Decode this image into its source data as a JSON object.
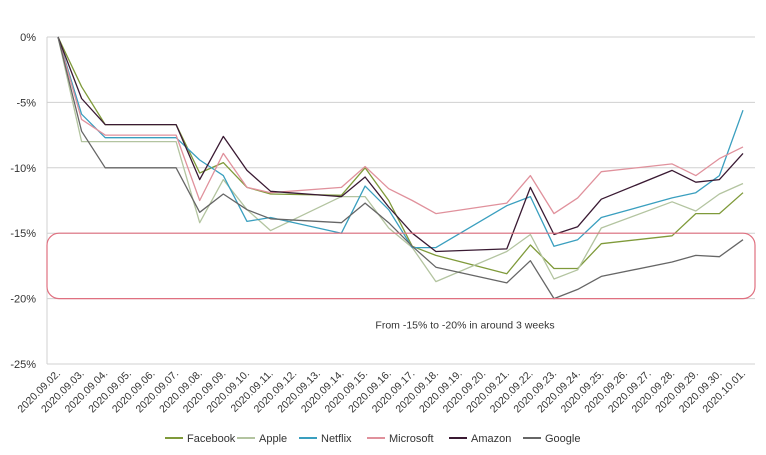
{
  "chart_data": {
    "type": "line",
    "title": "",
    "xlabel": "",
    "ylabel": "",
    "ylim": [
      -25,
      0
    ],
    "y_ticks": [
      "0%",
      "-5%",
      "-10%",
      "-15%",
      "-20%",
      "-25%"
    ],
    "y_tick_values": [
      0,
      -5,
      -10,
      -15,
      -20,
      -25
    ],
    "grid": true,
    "legend": "bottom",
    "categories": [
      "2020.09.02.",
      "2020.09.03.",
      "2020.09.04.",
      "2020.09.05.",
      "2020.09.06.",
      "2020.09.07.",
      "2020.09.08.",
      "2020.09.09.",
      "2020.09.10.",
      "2020.09.11.",
      "2020.09.12.",
      "2020.09.13.",
      "2020.09.14.",
      "2020.09.15.",
      "2020.09.16.",
      "2020.09.17.",
      "2020.09.18.",
      "2020.09.19.",
      "2020.09.20.",
      "2020.09.21.",
      "2020.09.22.",
      "2020.09.23.",
      "2020.09.24.",
      "2020.09.25.",
      "2020.09.26.",
      "2020.09.27.",
      "2020.09.28.",
      "2020.09.29.",
      "2020.09.30.",
      "2020.10.01."
    ],
    "series": [
      {
        "name": "Facebook",
        "color": "#7f9a3a",
        "values": [
          0,
          -3.8,
          -6.7,
          null,
          null,
          -6.7,
          -10.4,
          -9.6,
          -11.5,
          -12.0,
          null,
          null,
          -12.1,
          -10.0,
          -12.5,
          -16.0,
          -16.7,
          null,
          null,
          -18.1,
          -15.9,
          -17.7,
          -17.7,
          -15.8,
          null,
          null,
          -15.2,
          -13.5,
          -13.5,
          -11.9
        ]
      },
      {
        "name": "Apple",
        "color": "#b3c4a0",
        "values": [
          0,
          -8.0,
          -8.0,
          null,
          null,
          -8.0,
          -14.2,
          -10.9,
          -13.2,
          -14.8,
          null,
          null,
          -12.2,
          -12.2,
          -14.6,
          -16.1,
          -18.7,
          null,
          null,
          -16.4,
          -15.1,
          -18.5,
          -17.8,
          -14.6,
          null,
          null,
          -12.6,
          -13.3,
          -12.0,
          -11.2
        ]
      },
      {
        "name": "Netflix",
        "color": "#3a9fbf",
        "values": [
          0,
          -5.9,
          -7.7,
          null,
          null,
          -7.7,
          -9.4,
          -10.6,
          -14.1,
          -13.8,
          null,
          null,
          -15.0,
          -11.4,
          -13.2,
          -16.1,
          -16.1,
          null,
          null,
          -12.9,
          -12.2,
          -16.0,
          -15.5,
          -13.8,
          null,
          null,
          -12.3,
          -11.9,
          -10.6,
          -5.6
        ]
      },
      {
        "name": "Microsoft",
        "color": "#e0919c",
        "values": [
          0,
          -6.3,
          -7.5,
          null,
          null,
          -7.5,
          -12.5,
          -8.9,
          -11.5,
          -11.9,
          null,
          null,
          -11.5,
          -9.9,
          -11.6,
          -12.5,
          -13.5,
          null,
          null,
          -12.7,
          -10.6,
          -13.5,
          -12.3,
          -10.3,
          null,
          null,
          -9.7,
          -10.6,
          -9.3,
          -8.4
        ]
      },
      {
        "name": "Amazon",
        "color": "#3a1a33",
        "values": [
          0,
          -4.7,
          -6.7,
          null,
          null,
          -6.7,
          -10.9,
          -7.6,
          -10.2,
          -11.8,
          null,
          null,
          -12.2,
          -10.7,
          -13.0,
          -15.0,
          -16.4,
          null,
          null,
          -16.2,
          -11.5,
          -15.1,
          -14.5,
          -12.4,
          null,
          null,
          -10.2,
          -11.1,
          -10.9,
          -8.9
        ]
      },
      {
        "name": "Google",
        "color": "#666666",
        "values": [
          0,
          -7.2,
          -10.0,
          null,
          null,
          -10.0,
          -13.4,
          -12.0,
          -13.2,
          -13.9,
          null,
          null,
          -14.2,
          -12.7,
          -14.2,
          -16.0,
          -17.6,
          null,
          null,
          -18.8,
          -17.1,
          -20.0,
          -19.3,
          -18.3,
          null,
          null,
          -17.2,
          -16.7,
          -16.8,
          -15.5
        ]
      }
    ],
    "annotation": {
      "text": "From -15% to -20% in around 3 weeks",
      "range": [
        -15,
        -20
      ],
      "color": "#e07080"
    }
  }
}
